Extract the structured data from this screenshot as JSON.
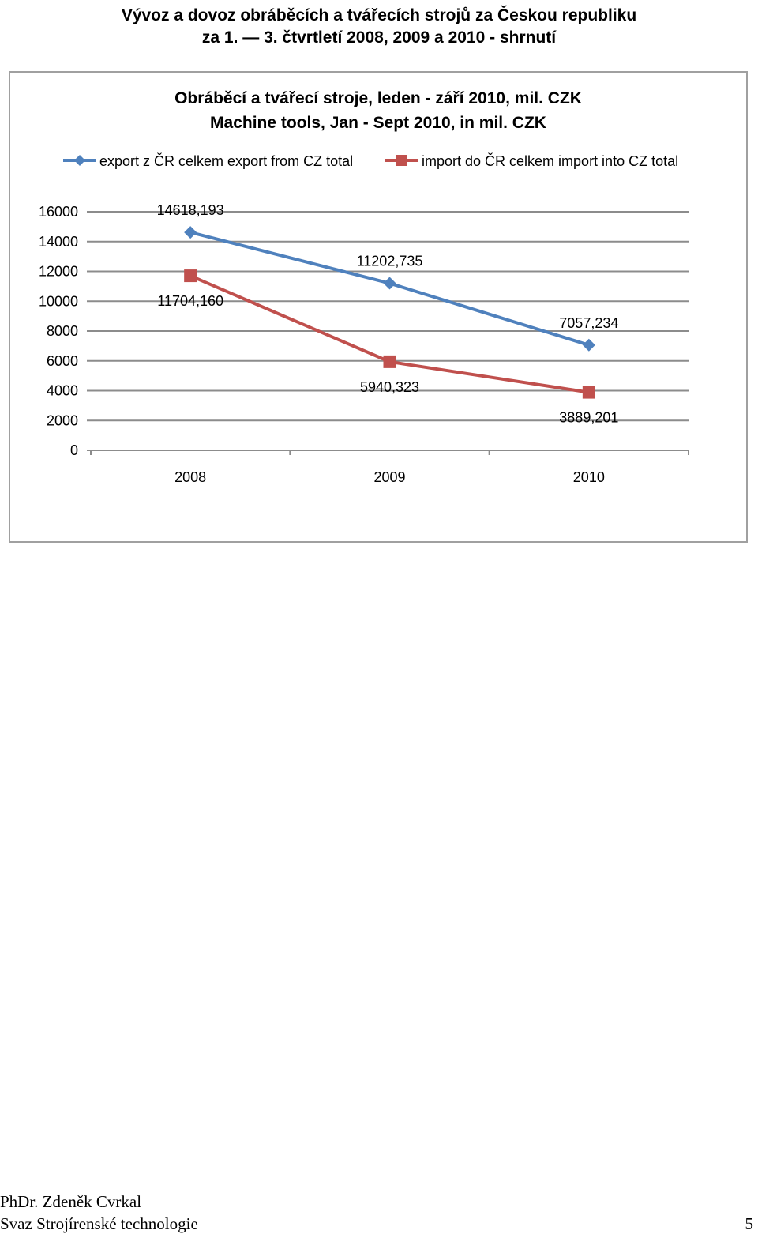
{
  "page": {
    "title_line1": "Vývoz a dovoz obráběcích a tvářecích strojů za Českou republiku",
    "title_line2": "za 1. — 3. čtvrtletí 2008, 2009 a 2010 - shrnutí"
  },
  "chart_data": {
    "type": "line",
    "title": "Obráběcí a tvářecí stroje, leden - září 2010, mil. CZK",
    "subtitle": "Machine tools, Jan - Sept 2010, in mil. CZK",
    "categories": [
      "2008",
      "2009",
      "2010"
    ],
    "series": [
      {
        "name": "export z ČR celkem export from CZ total",
        "values": [
          14618.193,
          11202.735,
          7057.234
        ],
        "labels": [
          "14618,193",
          "11202,735",
          "7057,234"
        ],
        "color": "#4f81bd",
        "marker": "diamond"
      },
      {
        "name": "import do ČR celkem import into CZ total",
        "values": [
          11704.16,
          5940.323,
          3889.201
        ],
        "labels": [
          "11704,160",
          "5940,323",
          "3889,201"
        ],
        "color": "#c0504d",
        "marker": "square"
      }
    ],
    "ylim": [
      0,
      16000
    ],
    "yticks": [
      0,
      2000,
      4000,
      6000,
      8000,
      10000,
      12000,
      14000,
      16000
    ],
    "grid": true,
    "legend": "top"
  },
  "footer": {
    "author": "PhDr. Zdeněk Cvrkal",
    "organization": "Svaz Strojírenské technologie",
    "page_number": "5"
  }
}
